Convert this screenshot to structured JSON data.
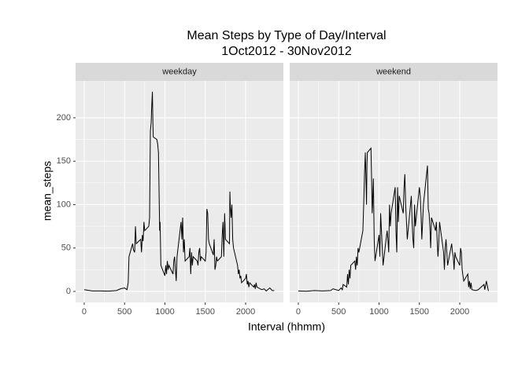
{
  "title": "Mean Steps by Type of Day/Interval",
  "subtitle": "1Oct2012 - 30Nov2012",
  "x_label": "Interval (hhmm)",
  "y_label": "mean_steps",
  "chart_data": [
    {
      "type": "line",
      "facet": "weekday",
      "color": "#000000",
      "grid": true,
      "xlim": [
        -107,
        2468
      ],
      "ylim": [
        -12.7,
        242.5
      ],
      "xticks": [
        0,
        500,
        1000,
        1500,
        2000
      ],
      "yticks": [
        0,
        50,
        100,
        150,
        200
      ],
      "x": [
        0,
        100,
        200,
        300,
        400,
        450,
        500,
        530,
        545,
        555,
        600,
        610,
        625,
        635,
        645,
        700,
        710,
        720,
        730,
        740,
        750,
        800,
        810,
        820,
        830,
        835,
        845,
        850,
        855,
        900,
        910,
        920,
        930,
        935,
        940,
        950,
        1000,
        1010,
        1020,
        1030,
        1040,
        1050,
        1100,
        1110,
        1120,
        1130,
        1140,
        1150,
        1200,
        1210,
        1220,
        1230,
        1240,
        1250,
        1300,
        1310,
        1320,
        1330,
        1340,
        1350,
        1400,
        1410,
        1420,
        1430,
        1440,
        1450,
        1500,
        1510,
        1520,
        1530,
        1540,
        1550,
        1600,
        1610,
        1620,
        1630,
        1640,
        1650,
        1700,
        1710,
        1720,
        1730,
        1740,
        1750,
        1800,
        1805,
        1810,
        1820,
        1830,
        1840,
        1850,
        1900,
        1910,
        1920,
        1930,
        1940,
        1950,
        2000,
        2010,
        2020,
        2030,
        2040,
        2050,
        2100,
        2110,
        2120,
        2130,
        2140,
        2200,
        2230,
        2255,
        2300,
        2330,
        2355
      ],
      "values": [
        2,
        0.5,
        0.5,
        0.3,
        1,
        3,
        4,
        2,
        10,
        40,
        55,
        48,
        45,
        75,
        55,
        60,
        45,
        65,
        58,
        80,
        70,
        75,
        85,
        185,
        195,
        210,
        230,
        200,
        178,
        175,
        170,
        160,
        100,
        70,
        80,
        30,
        18,
        30,
        20,
        35,
        25,
        30,
        20,
        35,
        40,
        25,
        12,
        40,
        80,
        60,
        85,
        45,
        60,
        35,
        40,
        50,
        20,
        45,
        30,
        40,
        35,
        30,
        45,
        50,
        35,
        40,
        35,
        45,
        95,
        90,
        60,
        55,
        42,
        60,
        25,
        30,
        40,
        35,
        40,
        65,
        80,
        40,
        90,
        60,
        55,
        115,
        100,
        85,
        100,
        60,
        50,
        30,
        20,
        25,
        15,
        18,
        10,
        15,
        20,
        8,
        12,
        5,
        10,
        5,
        8,
        3,
        10,
        5,
        2,
        3,
        0.5,
        4,
        1,
        1
      ]
    },
    {
      "type": "line",
      "facet": "weekend",
      "color": "#000000",
      "grid": true,
      "xlim": [
        -107,
        2468
      ],
      "ylim": [
        -12.7,
        242.5
      ],
      "xticks": [
        0,
        500,
        1000,
        1500,
        2000
      ],
      "yticks": [
        0,
        50,
        100,
        150,
        200
      ],
      "x": [
        0,
        100,
        200,
        300,
        400,
        430,
        500,
        530,
        545,
        555,
        600,
        610,
        620,
        630,
        640,
        650,
        700,
        710,
        720,
        730,
        740,
        750,
        800,
        810,
        820,
        830,
        835,
        840,
        845,
        850,
        855,
        900,
        910,
        915,
        920,
        930,
        940,
        950,
        1000,
        1010,
        1020,
        1030,
        1040,
        1050,
        1100,
        1110,
        1120,
        1130,
        1140,
        1150,
        1200,
        1210,
        1220,
        1230,
        1240,
        1250,
        1300,
        1310,
        1320,
        1330,
        1340,
        1350,
        1400,
        1410,
        1420,
        1430,
        1440,
        1450,
        1500,
        1510,
        1520,
        1530,
        1540,
        1550,
        1600,
        1610,
        1620,
        1630,
        1640,
        1650,
        1700,
        1710,
        1720,
        1730,
        1740,
        1750,
        1800,
        1810,
        1820,
        1830,
        1840,
        1850,
        1900,
        1910,
        1920,
        1930,
        1940,
        1950,
        2000,
        2010,
        2020,
        2030,
        2040,
        2050,
        2100,
        2110,
        2120,
        2130,
        2140,
        2150,
        2200,
        2230,
        2300,
        2310,
        2330,
        2355
      ],
      "values": [
        0.5,
        0.2,
        1,
        0.5,
        1,
        3,
        1,
        4,
        2,
        8,
        5,
        20,
        8,
        25,
        15,
        30,
        35,
        25,
        40,
        30,
        50,
        45,
        70,
        100,
        135,
        160,
        140,
        120,
        100,
        145,
        160,
        165,
        120,
        90,
        100,
        130,
        60,
        35,
        65,
        40,
        90,
        70,
        50,
        30,
        70,
        60,
        45,
        100,
        75,
        90,
        120,
        70,
        45,
        120,
        80,
        110,
        90,
        120,
        135,
        100,
        80,
        60,
        110,
        80,
        60,
        50,
        100,
        75,
        120,
        110,
        90,
        60,
        80,
        100,
        145,
        95,
        90,
        75,
        50,
        85,
        70,
        80,
        60,
        40,
        55,
        80,
        45,
        25,
        50,
        60,
        45,
        30,
        55,
        45,
        40,
        25,
        45,
        40,
        30,
        50,
        45,
        25,
        18,
        12,
        20,
        5,
        12,
        3,
        10,
        2,
        1,
        2,
        8,
        2,
        12,
        0.5
      ]
    }
  ]
}
